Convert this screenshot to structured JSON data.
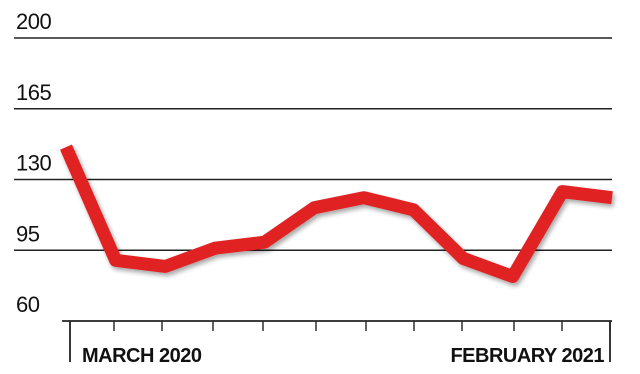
{
  "chart_data": {
    "type": "line",
    "title": "",
    "xlabel": "",
    "ylabel": "",
    "ylim": [
      60,
      200
    ],
    "y_ticks": [
      200,
      165,
      130,
      95,
      60
    ],
    "x_labels": [
      "MARCH 2020",
      "FEBRUARY 2021"
    ],
    "grid": true,
    "legend": "none",
    "series": [
      {
        "values": [
          146,
          90,
          87,
          96,
          99,
          116,
          121,
          115,
          91,
          82,
          124,
          121
        ],
        "color": "#e02020"
      }
    ]
  }
}
